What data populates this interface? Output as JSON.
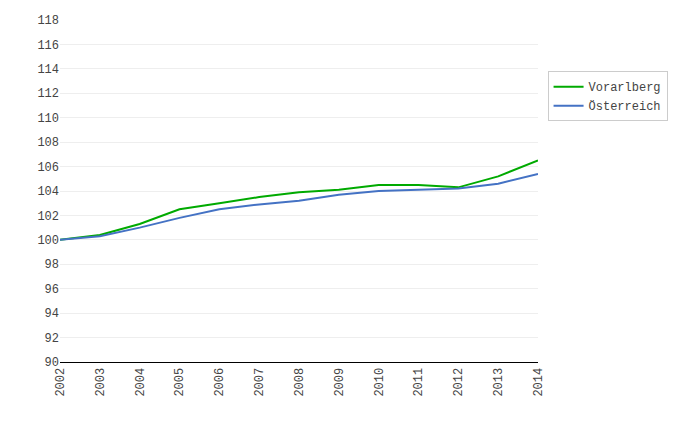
{
  "chart_data": {
    "type": "line",
    "x": [
      2002,
      2003,
      2004,
      2005,
      2006,
      2007,
      2008,
      2009,
      2010,
      2011,
      2012,
      2013,
      2014
    ],
    "series": [
      {
        "name": "Vorarlberg",
        "color": "#00aa00",
        "values": [
          100.0,
          100.4,
          101.3,
          102.5,
          103.0,
          103.5,
          103.9,
          104.1,
          104.5,
          104.5,
          104.3,
          105.2,
          106.5
        ]
      },
      {
        "name": "Österreich",
        "color": "#4472c4",
        "values": [
          100.0,
          100.3,
          101.0,
          101.8,
          102.5,
          102.9,
          103.2,
          103.7,
          104.0,
          104.1,
          104.2,
          104.6,
          105.4
        ]
      }
    ],
    "xlim": [
      2002,
      2014
    ],
    "xticks": [
      2002,
      2003,
      2004,
      2005,
      2006,
      2007,
      2008,
      2009,
      2010,
      2011,
      2012,
      2013,
      2014
    ],
    "ylim": [
      90,
      118
    ],
    "yticks": [
      90,
      92,
      94,
      96,
      98,
      100,
      102,
      104,
      106,
      108,
      110,
      112,
      114,
      116,
      118
    ],
    "grid": true,
    "legend": "right"
  }
}
